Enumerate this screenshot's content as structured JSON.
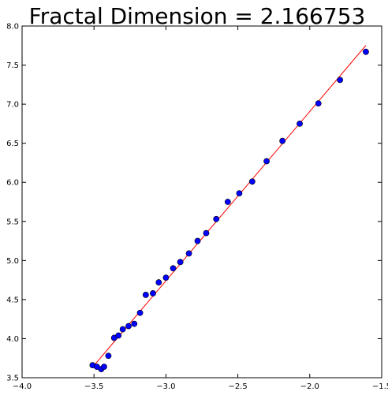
{
  "chart_data": {
    "type": "scatter",
    "title": "Fractal Dimension = 2.166753",
    "xlabel": "",
    "ylabel": "",
    "xlim": [
      -4.0,
      -1.5
    ],
    "ylim": [
      3.5,
      8.0
    ],
    "xticks": [
      "-4.0",
      "-3.5",
      "-3.0",
      "-2.5",
      "-2.0",
      "-1.5"
    ],
    "yticks": [
      "3.5",
      "4.0",
      "4.5",
      "5.0",
      "5.5",
      "6.0",
      "6.5",
      "7.0",
      "7.5",
      "8.0"
    ],
    "grid": false,
    "series": [
      {
        "marker_color": "#0000ff",
        "points": [
          [
            -3.51,
            3.66
          ],
          [
            -3.48,
            3.64
          ],
          [
            -3.45,
            3.61
          ],
          [
            -3.43,
            3.64
          ],
          [
            -3.4,
            3.78
          ],
          [
            -3.36,
            4.01
          ],
          [
            -3.33,
            4.04
          ],
          [
            -3.3,
            4.12
          ],
          [
            -3.26,
            4.16
          ],
          [
            -3.22,
            4.19
          ],
          [
            -3.18,
            4.33
          ],
          [
            -3.14,
            4.56
          ],
          [
            -3.09,
            4.58
          ],
          [
            -3.05,
            4.72
          ],
          [
            -3.0,
            4.78
          ],
          [
            -2.95,
            4.9
          ],
          [
            -2.9,
            4.98
          ],
          [
            -2.84,
            5.09
          ],
          [
            -2.78,
            5.25
          ],
          [
            -2.72,
            5.35
          ],
          [
            -2.65,
            5.53
          ],
          [
            -2.57,
            5.75
          ],
          [
            -2.49,
            5.86
          ],
          [
            -2.4,
            6.01
          ],
          [
            -2.3,
            6.27
          ],
          [
            -2.19,
            6.53
          ],
          [
            -2.07,
            6.75
          ],
          [
            -1.94,
            7.01
          ],
          [
            -1.79,
            7.31
          ],
          [
            -1.61,
            7.67
          ]
        ]
      }
    ],
    "fit_line": {
      "color": "#ff0000",
      "slope": 2.166753,
      "intercept": 11.24,
      "x_range": [
        -3.51,
        -1.61
      ]
    }
  }
}
